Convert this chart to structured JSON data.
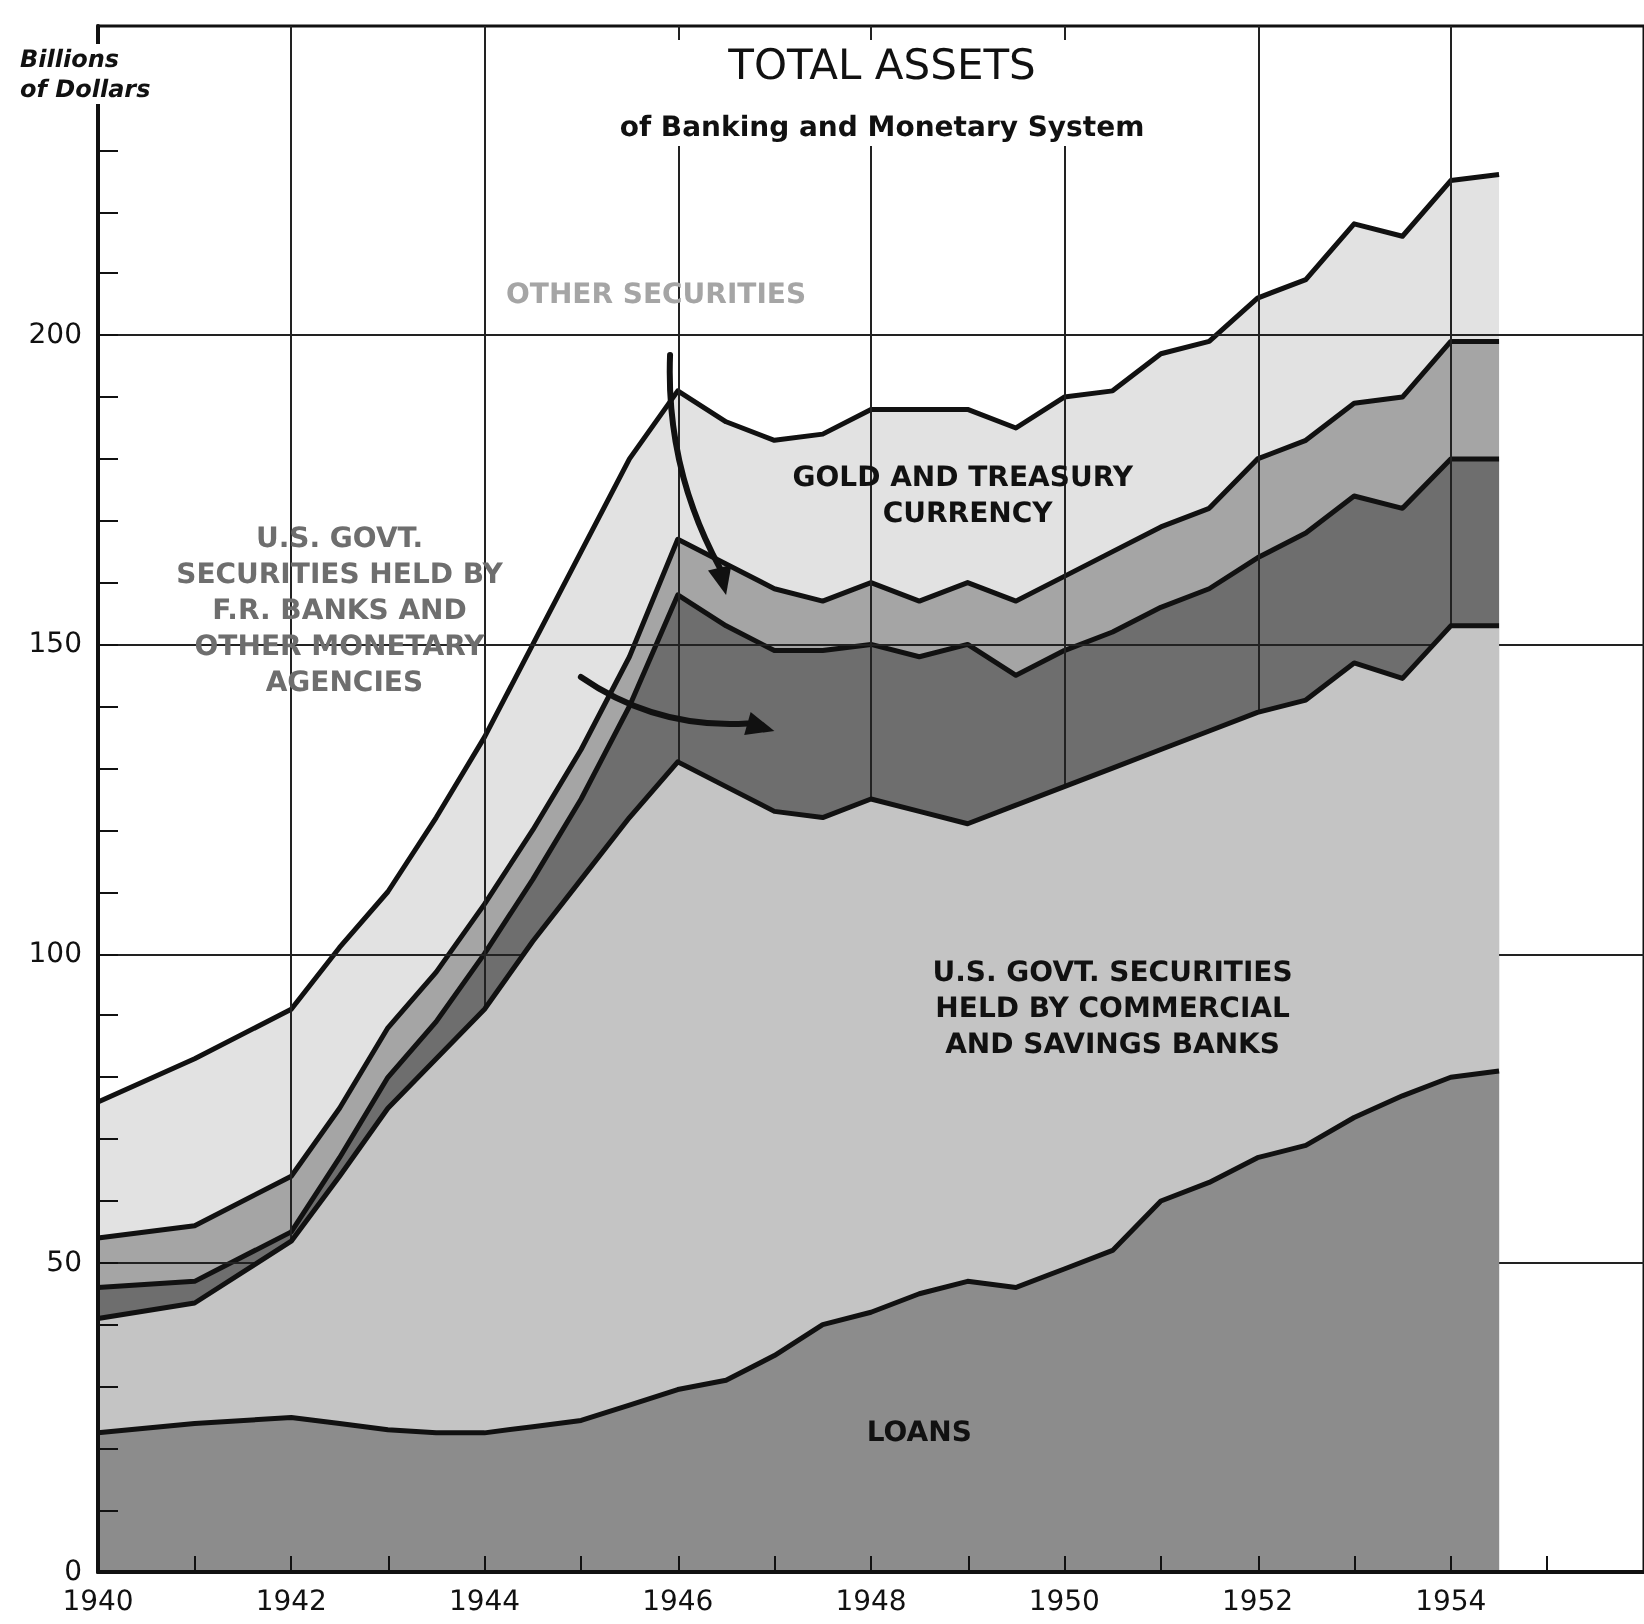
{
  "chart_data": {
    "type": "area",
    "title": "TOTAL ASSETS",
    "subtitle": "of Banking and Monetary System",
    "ylabel": "Billions of Dollars",
    "stacked": true,
    "grid": true,
    "x": [
      1940,
      1941,
      1942,
      1942.5,
      1943,
      1943.5,
      1944,
      1944.5,
      1945,
      1945.5,
      1946,
      1946.5,
      1947,
      1947.5,
      1948,
      1948.5,
      1949,
      1949.5,
      1950,
      1950.5,
      1951,
      1951.5,
      1952,
      1952.5,
      1953,
      1953.5,
      1954,
      1954.5
    ],
    "xlim": [
      1940,
      1956
    ],
    "xticks": [
      1940,
      {
        "value": 1941,
        "label": null
      },
      1942,
      {
        "value": 1943,
        "label": null
      },
      1944,
      {
        "value": 1945,
        "label": null
      },
      1946,
      {
        "value": 1947,
        "label": null
      },
      1948,
      {
        "value": 1949,
        "label": null
      },
      1950,
      {
        "value": 1951,
        "label": null
      },
      1952,
      {
        "value": 1953,
        "label": null
      },
      1954,
      {
        "value": 1955,
        "label": null
      }
    ],
    "ylim": [
      0,
      250
    ],
    "yticks": [
      0,
      {
        "value": 10,
        "label": null
      },
      {
        "value": 20,
        "label": null
      },
      {
        "value": 30,
        "label": null
      },
      {
        "value": 40,
        "label": null
      },
      50,
      {
        "value": 60,
        "label": null
      },
      {
        "value": 70,
        "label": null
      },
      {
        "value": 80,
        "label": null
      },
      {
        "value": 90,
        "label": null
      },
      100,
      {
        "value": 110,
        "label": null
      },
      {
        "value": 120,
        "label": null
      },
      {
        "value": 130,
        "label": null
      },
      {
        "value": 140,
        "label": null
      },
      150,
      {
        "value": 160,
        "label": null
      },
      {
        "value": 170,
        "label": null
      },
      {
        "value": 180,
        "label": null
      },
      {
        "value": 190,
        "label": null
      },
      200,
      {
        "value": 210,
        "label": null
      },
      {
        "value": 220,
        "label": null
      },
      {
        "value": 230,
        "label": null
      }
    ],
    "series": [
      {
        "name": "LOANS",
        "color": "#8c8c8c",
        "values": [
          22.5,
          24,
          25,
          24,
          23,
          22.5,
          22.5,
          23.5,
          24.5,
          27,
          29.5,
          31,
          35,
          40,
          42,
          45,
          47,
          46,
          49,
          52,
          60,
          63,
          67,
          69,
          73.5,
          77,
          80,
          81
        ]
      },
      {
        "name": "U.S. GOVT. SECURITIES HELD BY COMMERCIAL AND SAVINGS BANKS",
        "color": "#c4c4c4",
        "values": [
          18.5,
          19.5,
          28.5,
          40,
          52,
          60.5,
          68.5,
          78.5,
          87.5,
          95,
          101.5,
          96,
          88,
          82,
          83,
          78,
          74,
          78,
          78,
          78,
          73,
          73,
          72,
          72,
          73.5,
          67.5,
          73,
          72
        ]
      },
      {
        "name": "U.S. GOVT. SECURITIES HELD BY F.R. BANKS AND OTHER MONETARY AGENCIES",
        "color": "#6e6e6e",
        "values": [
          5,
          3.5,
          1.5,
          3,
          5,
          6,
          9,
          10,
          13,
          18,
          27,
          26,
          26,
          27,
          25,
          25,
          29,
          21,
          22,
          22,
          23,
          23,
          25,
          27,
          27,
          27.5,
          27,
          27
        ]
      },
      {
        "name": "OTHER SECURITIES",
        "color": "#a5a5a5",
        "values": [
          8,
          9,
          9,
          8,
          8,
          8,
          8,
          8,
          8,
          8,
          9,
          10,
          10,
          8,
          10,
          9,
          10,
          12,
          12,
          13,
          13,
          13,
          16,
          15,
          15,
          18,
          19,
          19
        ]
      },
      {
        "name": "GOLD AND TREASURY CURRENCY",
        "color": "#e2e2e2",
        "values": [
          22,
          27,
          27,
          26,
          22,
          25,
          27,
          30,
          32,
          32,
          24,
          23,
          24,
          27,
          28,
          31,
          28,
          28,
          29,
          26,
          28,
          27,
          26,
          26,
          29,
          26,
          26,
          27
        ]
      }
    ]
  }
}
